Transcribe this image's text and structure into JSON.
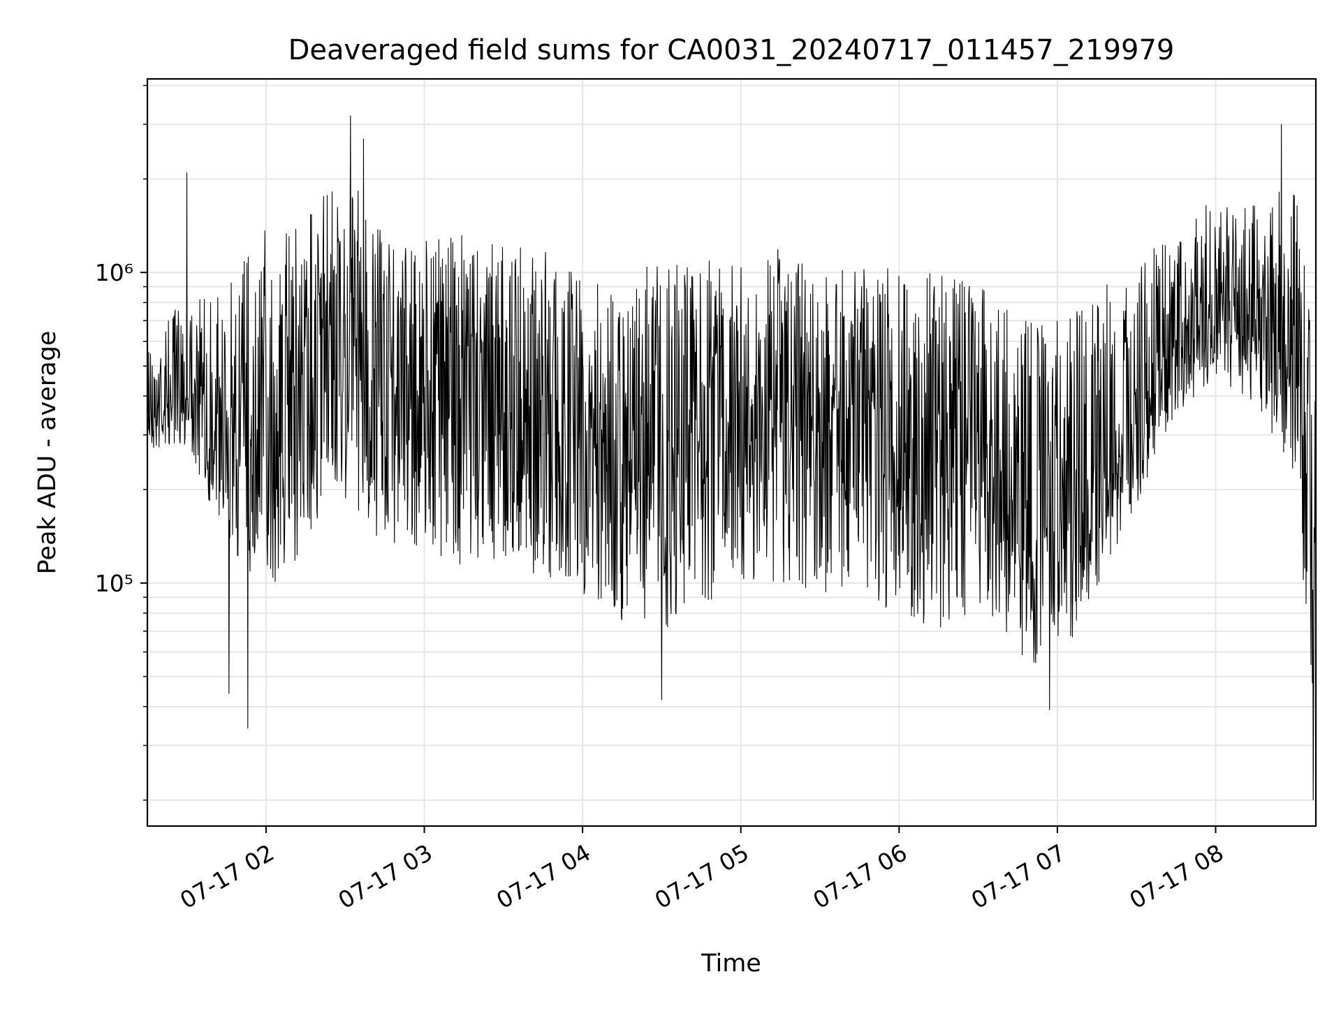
{
  "chart_data": {
    "type": "line",
    "title": "Deaveraged field sums for CA0031_20240717_011457_219979",
    "xlabel": "Time",
    "ylabel": "Peak ADU - average",
    "y_scale": "log",
    "ylim": [
      16500,
      4200000
    ],
    "xlim": [
      "2024-07-17 01:15",
      "2024-07-17 08:38"
    ],
    "x_ticks": [
      "2024-07-17 02:00",
      "2024-07-17 03:00",
      "2024-07-17 04:00",
      "2024-07-17 05:00",
      "2024-07-17 06:00",
      "2024-07-17 07:00",
      "2024-07-17 08:00"
    ],
    "x_tick_labels": [
      "07-17 02",
      "07-17 03",
      "07-17 04",
      "07-17 05",
      "07-17 06",
      "07-17 07",
      "07-17 08"
    ],
    "y_major_ticks": [
      100000,
      1000000
    ],
    "y_tick_labels": [
      "10⁵",
      "10⁶"
    ],
    "grid": true,
    "legend": "none",
    "colors": {
      "line": "#000000",
      "grid": "#e6e6e6",
      "axes": "#000000"
    },
    "series": [
      {
        "x": [
          "2024-07-17 01:15",
          "2024-07-17 01:30",
          "2024-07-17 01:45",
          "2024-07-17 02:00",
          "2024-07-17 02:15",
          "2024-07-17 02:30",
          "2024-07-17 02:45",
          "2024-07-17 03:00",
          "2024-07-17 03:15",
          "2024-07-17 03:30",
          "2024-07-17 03:45",
          "2024-07-17 04:00",
          "2024-07-17 04:15",
          "2024-07-17 04:30",
          "2024-07-17 04:45",
          "2024-07-17 05:00",
          "2024-07-17 05:15",
          "2024-07-17 05:30",
          "2024-07-17 05:45",
          "2024-07-17 06:00",
          "2024-07-17 06:15",
          "2024-07-17 06:30",
          "2024-07-17 06:45",
          "2024-07-17 07:00",
          "2024-07-17 07:15",
          "2024-07-17 07:30",
          "2024-07-17 07:45",
          "2024-07-17 08:00",
          "2024-07-17 08:15",
          "2024-07-17 08:30",
          "2024-07-17 08:38"
        ],
        "y_median": [
          380000,
          420000,
          380000,
          480000,
          580000,
          700000,
          520000,
          560000,
          520000,
          500000,
          450000,
          350000,
          300000,
          330000,
          400000,
          450000,
          420000,
          380000,
          400000,
          350000,
          320000,
          380000,
          160000,
          150000,
          260000,
          350000,
          650000,
          900000,
          850000,
          550000,
          250000
        ],
        "y_high": [
          620000,
          850000,
          900000,
          1700000,
          1500000,
          2300000,
          1300000,
          1300000,
          1350000,
          1250000,
          1250000,
          1050000,
          1050000,
          1050000,
          1100000,
          1100000,
          1200000,
          1050000,
          1050000,
          1050000,
          1000000,
          950000,
          700000,
          700000,
          900000,
          1000000,
          1500000,
          1750000,
          1650000,
          2000000,
          500000
        ],
        "y_low": [
          260000,
          280000,
          130000,
          90000,
          130000,
          180000,
          130000,
          130000,
          110000,
          120000,
          100000,
          90000,
          75000,
          70000,
          80000,
          100000,
          100000,
          90000,
          90000,
          80000,
          70000,
          80000,
          58000,
          52000,
          95000,
          180000,
          350000,
          450000,
          380000,
          200000,
          30000
        ],
        "extremes": [
          {
            "x": "2024-07-17 01:30",
            "y": 2100000
          },
          {
            "x": "2024-07-17 01:46",
            "y": 44000
          },
          {
            "x": "2024-07-17 01:53",
            "y": 34000
          },
          {
            "x": "2024-07-17 02:32",
            "y": 3200000
          },
          {
            "x": "2024-07-17 02:37",
            "y": 2700000
          },
          {
            "x": "2024-07-17 04:30",
            "y": 42000
          },
          {
            "x": "2024-07-17 06:57",
            "y": 39000
          },
          {
            "x": "2024-07-17 08:25",
            "y": 3000000
          },
          {
            "x": "2024-07-17 08:37",
            "y": 20000
          }
        ]
      }
    ]
  }
}
